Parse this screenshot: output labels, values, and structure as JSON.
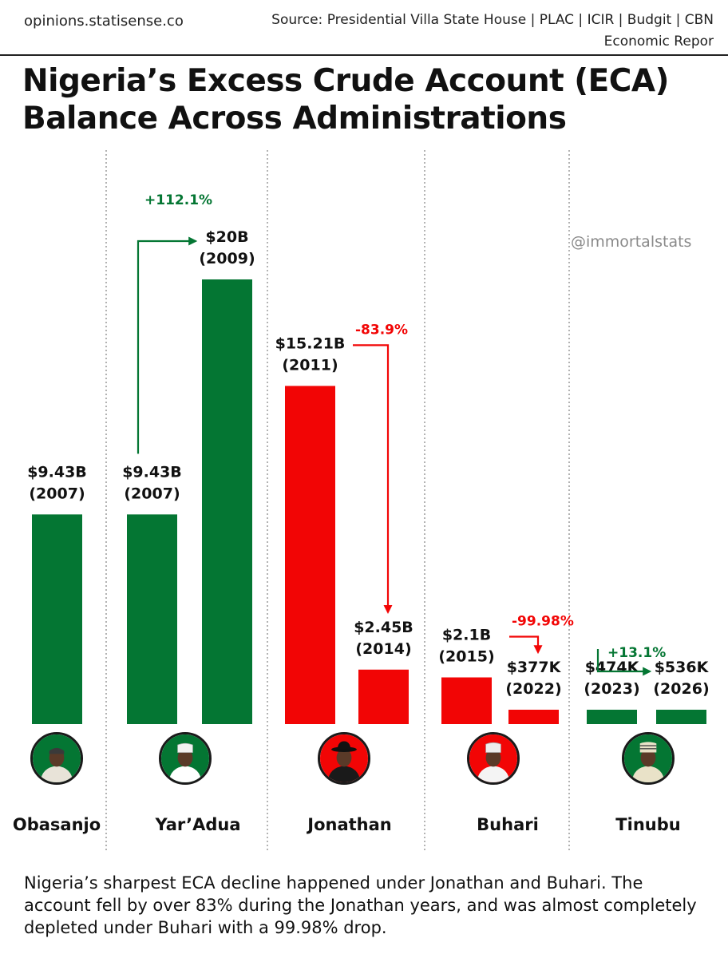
{
  "header": {
    "site": "opinions.statisense.co",
    "source": "Source: Presidential Villa State House | PLAC | ICIR | Budgit | CBN Economic Repor"
  },
  "title": {
    "line1": "Nigeria’s Excess Crude Account (ECA)",
    "line2": "Balance Across Administrations"
  },
  "watermark": "@immortalstats",
  "footer": "Nigeria’s sharpest ECA decline happened under Jonathan and Buhari. The account fell by over 83% during the Jonathan years, and was almost completely depleted under Buhari with a 99.98% drop.",
  "colors": {
    "green": "#047633",
    "red": "#f20505",
    "divider": "#9a9a9a"
  },
  "chart_data": {
    "type": "bar",
    "title": "Nigeria’s Excess Crude Account (ECA) Balance Across Administrations",
    "ylabel": "",
    "unit": "USD billions",
    "ylim": [
      0,
      20
    ],
    "grid": false,
    "legend": "none",
    "groups": [
      {
        "president": "Obasanjo",
        "photo_bg": "#047633",
        "bars": [
          {
            "label_value": "$9.43B",
            "label_year": "(2007)",
            "year": 2007,
            "value": 9.43,
            "color": "#047633"
          }
        ]
      },
      {
        "president": "Yar’Adua",
        "photo_bg": "#047633",
        "change": {
          "text": "+112.1%",
          "direction": "up",
          "color": "#047633"
        },
        "bars": [
          {
            "label_value": "$9.43B",
            "label_year": "(2007)",
            "year": 2007,
            "value": 9.43,
            "color": "#047633"
          },
          {
            "label_value": "$20B",
            "label_year": "(2009)",
            "year": 2009,
            "value": 20,
            "color": "#047633"
          }
        ]
      },
      {
        "president": "Jonathan",
        "photo_bg": "#f20505",
        "change": {
          "text": "-83.9%",
          "direction": "down",
          "color": "#f20505"
        },
        "bars": [
          {
            "label_value": "$15.21B",
            "label_year": "(2011)",
            "year": 2011,
            "value": 15.21,
            "color": "#f20505"
          },
          {
            "label_value": "$2.45B",
            "label_year": "(2014)",
            "year": 2014,
            "value": 2.45,
            "color": "#f20505"
          }
        ]
      },
      {
        "president": "Buhari",
        "photo_bg": "#f20505",
        "change": {
          "text": "-99.98%",
          "direction": "down",
          "color": "#f20505"
        },
        "bars": [
          {
            "label_value": "$2.1B",
            "label_year": "(2015)",
            "year": 2015,
            "value": 2.1,
            "color": "#f20505"
          },
          {
            "label_value": "$377K",
            "label_year": "(2022)",
            "year": 2022,
            "value": 0.000377,
            "color": "#f20505"
          }
        ]
      },
      {
        "president": "Tinubu",
        "photo_bg": "#047633",
        "change": {
          "text": "+13.1%",
          "direction": "up",
          "color": "#047633"
        },
        "bars": [
          {
            "label_value": "$474K",
            "label_year": "(2023)",
            "year": 2023,
            "value": 0.000474,
            "color": "#047633"
          },
          {
            "label_value": "$536K",
            "label_year": "(2026)",
            "year": 2026,
            "value": 0.000536,
            "color": "#047633"
          }
        ]
      }
    ]
  }
}
